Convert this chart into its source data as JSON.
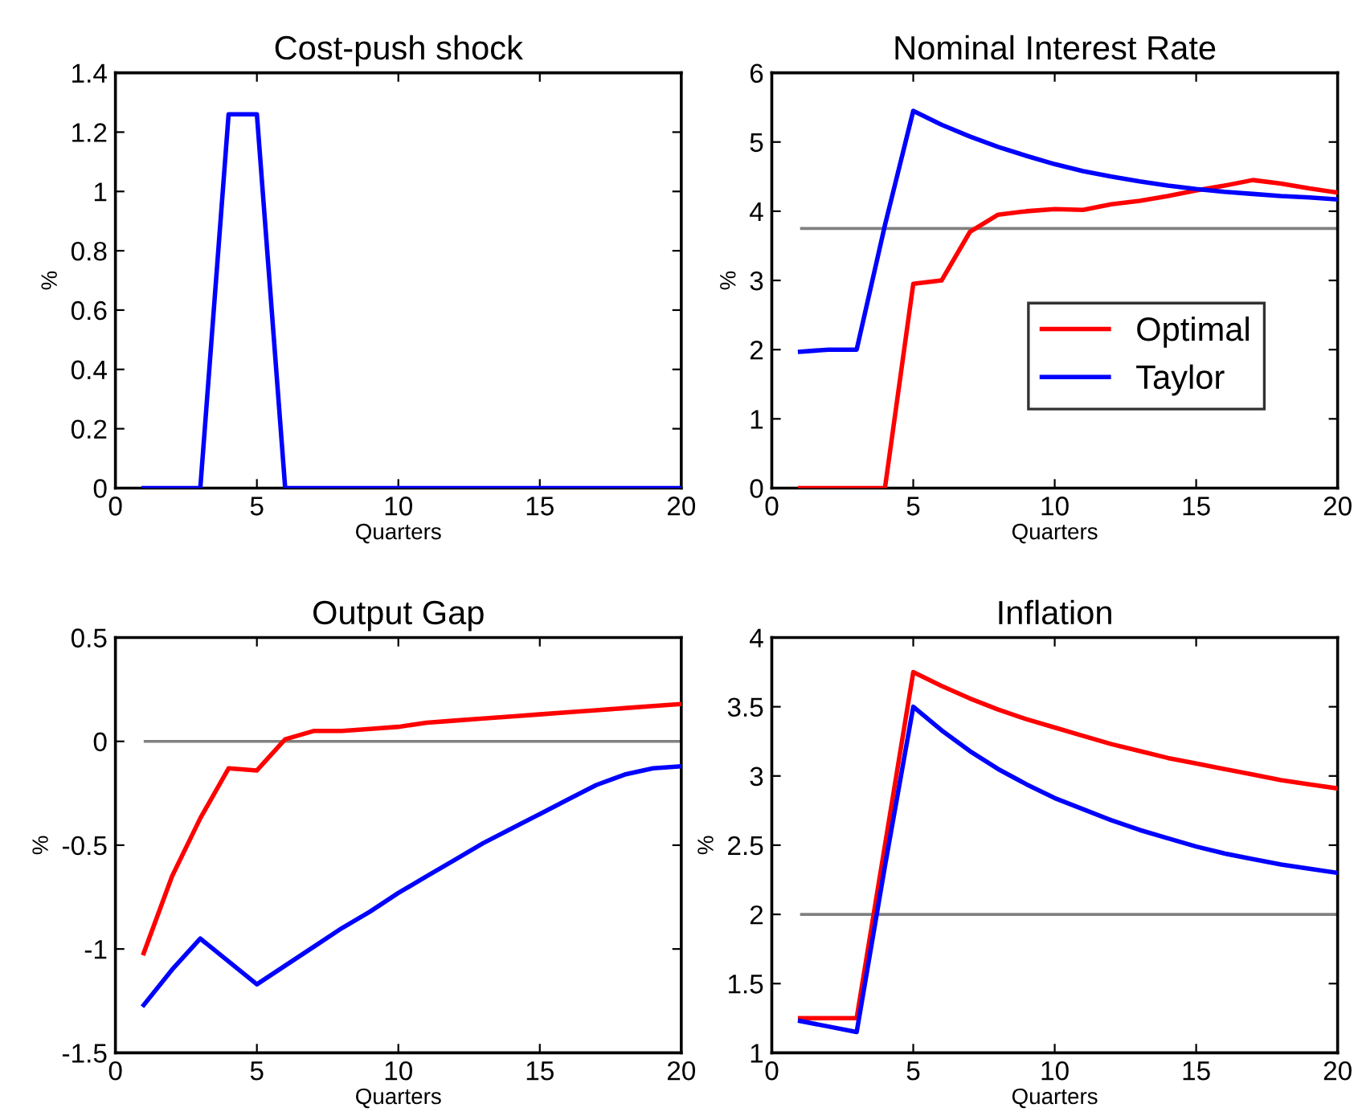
{
  "chart_data": [
    {
      "type": "line",
      "title": "Cost-push shock",
      "xlabel": "Quarters",
      "ylabel": "%",
      "x": [
        1,
        2,
        3,
        4,
        5,
        6,
        7,
        8,
        9,
        10,
        11,
        12,
        13,
        14,
        15,
        16,
        17,
        18,
        19,
        20
      ],
      "series": [
        {
          "color": "#0000ff",
          "values": [
            0,
            0,
            0,
            1.26,
            1.26,
            0,
            0,
            0,
            0,
            0,
            0,
            0,
            0,
            0,
            0,
            0,
            0,
            0,
            0,
            0
          ]
        }
      ],
      "xlim": [
        0,
        20
      ],
      "xticks": [
        0,
        5,
        10,
        15,
        20
      ],
      "ylim": [
        0,
        1.4
      ],
      "yticks": [
        0,
        0.2,
        0.4,
        0.6,
        0.8,
        1,
        1.2,
        1.4
      ],
      "grid": false,
      "legend": false
    },
    {
      "type": "line",
      "title": "Nominal Interest Rate",
      "xlabel": "Quarters",
      "ylabel": "%",
      "x": [
        1,
        2,
        3,
        4,
        5,
        6,
        7,
        8,
        9,
        10,
        11,
        12,
        13,
        14,
        15,
        16,
        17,
        18,
        19,
        20
      ],
      "series": [
        {
          "name": "Optimal",
          "color": "#ff0000",
          "values": [
            0,
            0,
            0,
            0,
            2.95,
            3.0,
            3.7,
            3.95,
            4.0,
            4.03,
            4.02,
            4.1,
            4.15,
            4.22,
            4.3,
            4.37,
            4.45,
            4.4,
            4.33,
            4.27
          ]
        },
        {
          "name": "Taylor",
          "color": "#0000ff",
          "values": [
            1.97,
            2.0,
            2.0,
            3.8,
            5.45,
            5.25,
            5.08,
            4.93,
            4.8,
            4.68,
            4.58,
            4.5,
            4.43,
            4.37,
            4.32,
            4.28,
            4.25,
            4.22,
            4.2,
            4.17
          ]
        }
      ],
      "ref_lines": [
        {
          "axis": "y",
          "value": 3.75,
          "color": "#808080"
        }
      ],
      "xlim": [
        0,
        20
      ],
      "xticks": [
        0,
        5,
        10,
        15,
        20
      ],
      "ylim": [
        0,
        6
      ],
      "yticks": [
        0,
        1,
        2,
        3,
        4,
        5,
        6
      ],
      "grid": false,
      "legend": "bottom right"
    },
    {
      "type": "line",
      "title": "Output Gap",
      "xlabel": "Quarters",
      "ylabel": "%",
      "x": [
        1,
        2,
        3,
        4,
        5,
        6,
        7,
        8,
        9,
        10,
        11,
        12,
        13,
        14,
        15,
        16,
        17,
        18,
        19,
        20
      ],
      "series": [
        {
          "color": "#ff0000",
          "values": [
            -1.02,
            -0.65,
            -0.37,
            -0.13,
            -0.14,
            0.01,
            0.05,
            0.05,
            0.06,
            0.07,
            0.09,
            0.1,
            0.11,
            0.12,
            0.13,
            0.14,
            0.15,
            0.16,
            0.17,
            0.18
          ]
        },
        {
          "color": "#0000ff",
          "values": [
            -1.27,
            -1.1,
            -0.95,
            -1.06,
            -1.17,
            -1.08,
            -0.99,
            -0.9,
            -0.82,
            -0.73,
            -0.65,
            -0.57,
            -0.49,
            -0.42,
            -0.35,
            -0.28,
            -0.21,
            -0.16,
            -0.13,
            -0.12
          ]
        }
      ],
      "ref_lines": [
        {
          "axis": "y",
          "value": 0,
          "color": "#808080"
        }
      ],
      "xlim": [
        0,
        20
      ],
      "xticks": [
        0,
        5,
        10,
        15,
        20
      ],
      "ylim": [
        -1.5,
        0.5
      ],
      "yticks": [
        -1.5,
        -1,
        -0.5,
        0,
        0.5
      ],
      "grid": false,
      "legend": false
    },
    {
      "type": "line",
      "title": "Inflation",
      "xlabel": "Quarters",
      "ylabel": "%",
      "x": [
        1,
        2,
        3,
        4,
        5,
        6,
        7,
        8,
        9,
        10,
        11,
        12,
        13,
        14,
        15,
        16,
        17,
        18,
        19,
        20
      ],
      "series": [
        {
          "color": "#ff0000",
          "values": [
            1.25,
            1.25,
            1.25,
            2.5,
            3.75,
            3.65,
            3.56,
            3.48,
            3.41,
            3.35,
            3.29,
            3.23,
            3.18,
            3.13,
            3.09,
            3.05,
            3.01,
            2.97,
            2.94,
            2.91
          ]
        },
        {
          "color": "#0000ff",
          "values": [
            1.23,
            1.19,
            1.15,
            2.35,
            3.5,
            3.33,
            3.18,
            3.05,
            2.94,
            2.84,
            2.76,
            2.68,
            2.61,
            2.55,
            2.49,
            2.44,
            2.4,
            2.36,
            2.33,
            2.3
          ]
        }
      ],
      "ref_lines": [
        {
          "axis": "y",
          "value": 2,
          "color": "#808080"
        }
      ],
      "xlim": [
        0,
        20
      ],
      "xticks": [
        0,
        5,
        10,
        15,
        20
      ],
      "ylim": [
        1,
        4
      ],
      "yticks": [
        1,
        1.5,
        2,
        2.5,
        3,
        3.5,
        4
      ],
      "grid": false,
      "legend": false
    }
  ]
}
